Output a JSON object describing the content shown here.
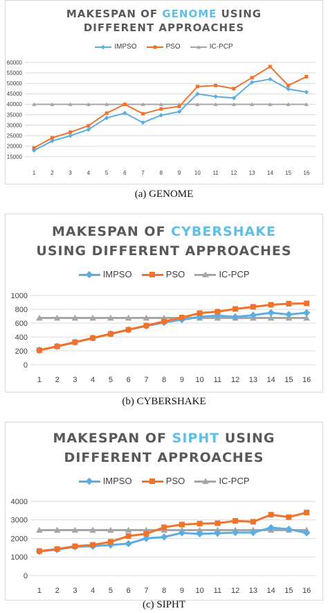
{
  "chart_data": [
    {
      "type": "line",
      "title_parts": [
        "MAKESPAN OF ",
        "GENOME",
        " USING DIFFERENT APPROACHES"
      ],
      "caption": "(a) GENOME",
      "categories": [
        "1",
        "2",
        "3",
        "4",
        "5",
        "6",
        "7",
        "8",
        "9",
        "10",
        "11",
        "12",
        "13",
        "14",
        "15",
        "16"
      ],
      "ylim": [
        15000,
        60000
      ],
      "yticks": [
        15000,
        20000,
        25000,
        30000,
        35000,
        40000,
        45000,
        50000,
        55000,
        60000
      ],
      "grid": true,
      "legend": "top",
      "series": [
        {
          "name": "IMPSO",
          "color": "#5dade2",
          "marker": "diamond",
          "values": [
            18000,
            22500,
            25000,
            28000,
            33500,
            35800,
            31300,
            34800,
            36500,
            45000,
            43700,
            43000,
            50500,
            52000,
            47300,
            45800
          ]
        },
        {
          "name": "PSO",
          "color": "#f0732b",
          "marker": "square",
          "values": [
            19200,
            24000,
            26700,
            29800,
            35800,
            40000,
            35500,
            37800,
            39000,
            48500,
            49000,
            47500,
            52700,
            58000,
            49000,
            53200
          ]
        },
        {
          "name": "IC-PCP",
          "color": "#a6a6a6",
          "marker": "triangle",
          "values": [
            40000,
            40000,
            40000,
            40000,
            40000,
            40000,
            40000,
            40000,
            40000,
            40000,
            40000,
            40000,
            40000,
            40000,
            40000,
            40000
          ]
        }
      ]
    },
    {
      "type": "line",
      "title_parts": [
        "MAKESPAN OF ",
        "CYBERSHAKE",
        " USING DIFFERENT APPROACHES"
      ],
      "caption": "(b) CYBERSHAKE",
      "categories": [
        "1",
        "2",
        "3",
        "4",
        "5",
        "6",
        "7",
        "8",
        "9",
        "10",
        "11",
        "12",
        "13",
        "14",
        "15",
        "16"
      ],
      "ylim": [
        0,
        1000
      ],
      "yticks": [
        0,
        200,
        400,
        600,
        800,
        1000
      ],
      "grid": true,
      "legend": "top",
      "series": [
        {
          "name": "IMPSO",
          "color": "#5dade2",
          "marker": "diamond",
          "values": [
            210,
            265,
            325,
            385,
            445,
            505,
            560,
            610,
            650,
            690,
            710,
            690,
            715,
            750,
            725,
            750
          ]
        },
        {
          "name": "PSO",
          "color": "#f0732b",
          "marker": "square",
          "values": [
            210,
            265,
            325,
            385,
            445,
            505,
            565,
            625,
            680,
            745,
            765,
            805,
            835,
            865,
            880,
            885
          ]
        },
        {
          "name": "IC-PCP",
          "color": "#a6a6a6",
          "marker": "triangle",
          "values": [
            675,
            675,
            675,
            675,
            675,
            675,
            675,
            675,
            675,
            675,
            675,
            675,
            675,
            675,
            675,
            675
          ]
        }
      ]
    },
    {
      "type": "line",
      "title_parts": [
        "MAKESPAN OF ",
        "SIPHT",
        " USING DIFFERENT APPROACHES"
      ],
      "caption": "(c) SIPHT",
      "categories": [
        "1",
        "2",
        "3",
        "4",
        "5",
        "6",
        "7",
        "8",
        "9",
        "10",
        "11",
        "12",
        "13",
        "14",
        "15",
        "16"
      ],
      "ylim": [
        0,
        4000
      ],
      "yticks": [
        0,
        1000,
        2000,
        3000,
        4000
      ],
      "grid": true,
      "legend": "top",
      "series": [
        {
          "name": "IMPSO",
          "color": "#5dade2",
          "marker": "diamond",
          "values": [
            1300,
            1400,
            1550,
            1580,
            1650,
            1720,
            2000,
            2080,
            2300,
            2250,
            2280,
            2320,
            2320,
            2580,
            2500,
            2300
          ]
        },
        {
          "name": "PSO",
          "color": "#f0732b",
          "marker": "square",
          "values": [
            1320,
            1430,
            1580,
            1650,
            1820,
            2130,
            2250,
            2600,
            2750,
            2800,
            2820,
            2950,
            2900,
            3280,
            3150,
            3400
          ]
        },
        {
          "name": "IC-PCP",
          "color": "#a6a6a6",
          "marker": "triangle",
          "values": [
            2450,
            2450,
            2450,
            2450,
            2450,
            2450,
            2450,
            2450,
            2450,
            2450,
            2450,
            2450,
            2450,
            2450,
            2450,
            2450
          ]
        }
      ]
    }
  ]
}
